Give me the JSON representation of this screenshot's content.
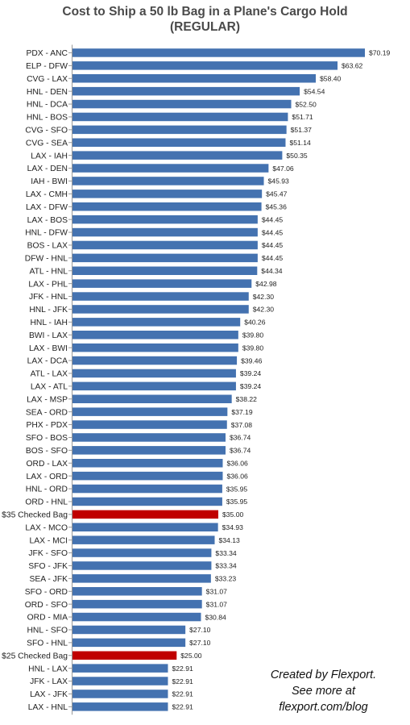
{
  "header": {
    "title_line1": "Cost to Ship a 50 lb Bag in a Plane's Cargo Hold",
    "title_line2": "(REGULAR)"
  },
  "footer": {
    "line1": "Created by Flexport.",
    "line2": "See more at",
    "line3": "flexport.com/blog"
  },
  "colors": {
    "bar": "#4472b0",
    "highlight": "#c00000",
    "axis": "#999999",
    "label": "#222222"
  },
  "chart_data": {
    "type": "bar",
    "orientation": "horizontal",
    "title": "Cost to Ship a 50 lb Bag in a Plane's Cargo Hold (REGULAR)",
    "xlim": [
      0,
      70.19
    ],
    "grid": false,
    "legend": "none",
    "categories": [
      "PDX - ANC",
      "ELP - DFW",
      "CVG - LAX",
      "HNL - DEN",
      "HNL - DCA",
      "HNL - BOS",
      "CVG - SFO",
      "CVG - SEA",
      "LAX - IAH",
      "LAX - DEN",
      "IAH - BWI",
      "LAX - CMH",
      "LAX - DFW",
      "LAX - BOS",
      "HNL - DFW",
      "BOS - LAX",
      "DFW - HNL",
      "ATL - HNL",
      "LAX - PHL",
      "JFK - HNL",
      "HNL - JFK",
      "HNL - IAH",
      "BWI - LAX",
      "LAX - BWI",
      "LAX - DCA",
      "ATL - LAX",
      "LAX - ATL",
      "LAX - MSP",
      "SEA - ORD",
      "PHX - PDX",
      "SFO - BOS",
      "BOS - SFO",
      "ORD - LAX",
      "LAX - ORD",
      "HNL - ORD",
      "ORD - HNL",
      "$35 Checked Bag",
      "LAX - MCO",
      "LAX - MCI",
      "JFK - SFO",
      "SFO - JFK",
      "SEA - JFK",
      "SFO - ORD",
      "ORD - SFO",
      "ORD - MIA",
      "HNL - SFO",
      "SFO - HNL",
      "$25 Checked Bag",
      "HNL - LAX",
      "JFK - LAX",
      "LAX - JFK",
      "LAX - HNL"
    ],
    "values": [
      70.19,
      63.62,
      58.4,
      54.54,
      52.5,
      51.71,
      51.37,
      51.14,
      50.35,
      47.06,
      45.93,
      45.47,
      45.36,
      44.45,
      44.45,
      44.45,
      44.45,
      44.34,
      42.98,
      42.3,
      42.3,
      40.26,
      39.8,
      39.8,
      39.46,
      39.24,
      39.24,
      38.22,
      37.19,
      37.08,
      36.74,
      36.74,
      36.06,
      36.06,
      35.95,
      35.95,
      35.0,
      34.93,
      34.13,
      33.34,
      33.34,
      33.23,
      31.07,
      31.07,
      30.84,
      27.1,
      27.1,
      25.0,
      22.91,
      22.91,
      22.91,
      22.91
    ],
    "value_labels": [
      "$70.19",
      "$63.62",
      "$58.40",
      "$54.54",
      "$52.50",
      "$51.71",
      "$51.37",
      "$51.14",
      "$50.35",
      "$47.06",
      "$45.93",
      "$45.47",
      "$45.36",
      "$44.45",
      "$44.45",
      "$44.45",
      "$44.45",
      "$44.34",
      "$42.98",
      "$42.30",
      "$42.30",
      "$40.26",
      "$39.80",
      "$39.80",
      "$39.46",
      "$39.24",
      "$39.24",
      "$38.22",
      "$37.19",
      "$37.08",
      "$36.74",
      "$36.74",
      "$36.06",
      "$36.06",
      "$35.95",
      "$35.95",
      "$35.00",
      "$34.93",
      "$34.13",
      "$33.34",
      "$33.34",
      "$33.23",
      "$31.07",
      "$31.07",
      "$30.84",
      "$27.10",
      "$27.10",
      "$25.00",
      "$22.91",
      "$22.91",
      "$22.91",
      "$22.91"
    ],
    "highlighted": [
      "$35 Checked Bag",
      "$25 Checked Bag"
    ]
  }
}
